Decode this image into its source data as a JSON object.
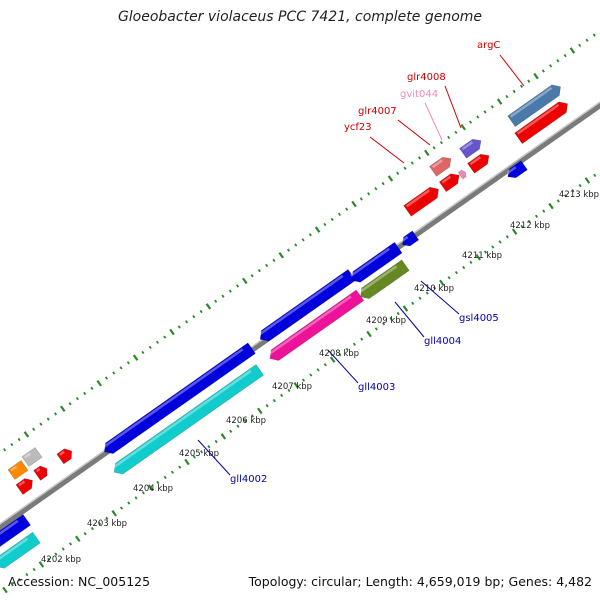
{
  "title": "Gloeobacter violaceus PCC 7421, complete genome",
  "footer": {
    "accession": "Accession: NC_005125",
    "summary": "Topology: circular; Length: 4,659,019 bp; Genes: 4,482"
  },
  "colors": {
    "backbone": "#8c8c8c",
    "tick_green": "#2a8a2a",
    "forward_label": "#cc0000",
    "reverse_label": "#0000b0",
    "pseudo_label": "#ee88bb",
    "blue": "#0000dd",
    "cyan": "#11cccc",
    "magenta": "#ee1199",
    "olive": "#668822",
    "red": "#ee0000",
    "steel": "#4a7aaa",
    "purple": "#6655cc",
    "salmon": "#e06666",
    "orange": "#ff8800",
    "gray": "#bbbbbb"
  },
  "kbp_ticks": [
    "4202 kbp",
    "4203 kbp",
    "4204 kbp",
    "4205 kbp",
    "4206 kbp",
    "4207 kbp",
    "4208 kbp",
    "4209 kbp",
    "4210 kbp",
    "4211 kbp",
    "4212 kbp",
    "4213 kbp"
  ],
  "gene_labels": [
    {
      "name": "argC",
      "color_key": "forward_label"
    },
    {
      "name": "glr4008",
      "color_key": "forward_label"
    },
    {
      "name": "gvit044",
      "color_key": "pseudo_label"
    },
    {
      "name": "glr4007",
      "color_key": "forward_label"
    },
    {
      "name": "ycf23",
      "color_key": "forward_label"
    },
    {
      "name": "gsl4005",
      "color_key": "reverse_label"
    },
    {
      "name": "gll4004",
      "color_key": "reverse_label"
    },
    {
      "name": "gll4003",
      "color_key": "reverse_label"
    },
    {
      "name": "gll4002",
      "color_key": "reverse_label"
    }
  ],
  "features": [
    {
      "name": "gll4002-body",
      "color_key": "cyan",
      "track": 2
    },
    {
      "name": "gll4003-body",
      "color_key": "magenta",
      "track": 2
    },
    {
      "name": "gsl4005-body",
      "color_key": "olive",
      "track": 2
    },
    {
      "name": "blue-gene-1",
      "color_key": "blue",
      "track": 1
    },
    {
      "name": "blue-gene-2",
      "color_key": "blue",
      "track": 1
    },
    {
      "name": "blue-gene-3",
      "color_key": "blue",
      "track": 1
    },
    {
      "name": "blue-gene-4",
      "color_key": "blue",
      "track": 1
    },
    {
      "name": "argC-body",
      "color_key": "steel",
      "track": -1
    },
    {
      "name": "red-gene-1",
      "color_key": "red",
      "track": -1
    },
    {
      "name": "red-gene-2",
      "color_key": "red",
      "track": -1
    }
  ]
}
